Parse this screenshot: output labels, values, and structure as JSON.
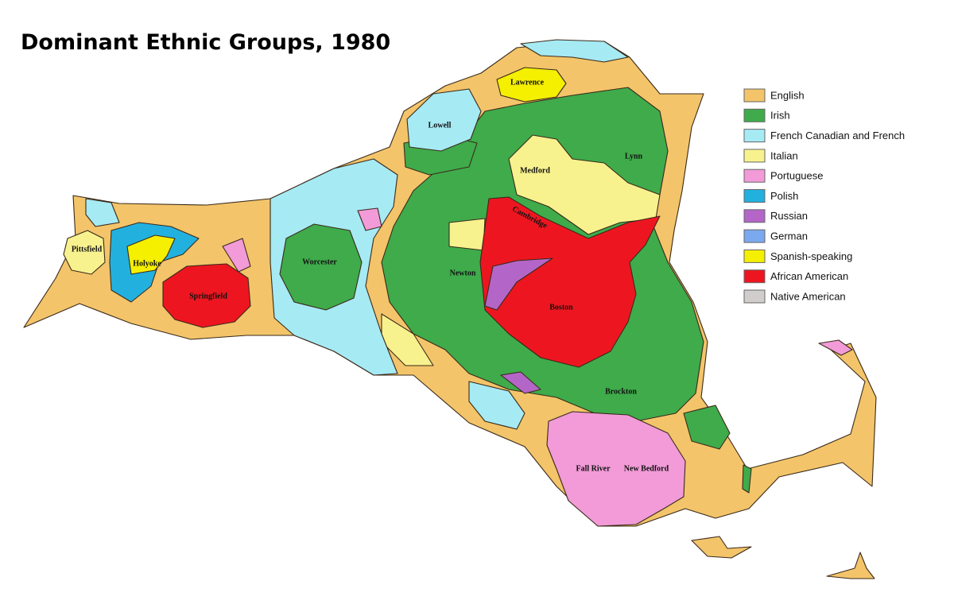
{
  "title": "Dominant Ethnic Groups, 1980",
  "legend": [
    {
      "label": "English",
      "color": "#f3c46a"
    },
    {
      "label": "Irish",
      "color": "#3fab4b"
    },
    {
      "label": "French Canadian and French",
      "color": "#a6eaf4"
    },
    {
      "label": "Italian",
      "color": "#f8f28e"
    },
    {
      "label": "Portuguese",
      "color": "#f29bd8"
    },
    {
      "label": "Polish",
      "color": "#22b1df"
    },
    {
      "label": "Russian",
      "color": "#b466c8"
    },
    {
      "label": "German",
      "color": "#7ba9ef"
    },
    {
      "label": "Spanish-speaking",
      "color": "#f5ef00"
    },
    {
      "label": "African American",
      "color": "#ed1620"
    },
    {
      "label": "Native American",
      "color": "#d1cdcc"
    }
  ],
  "places": [
    {
      "label": "Lawrence"
    },
    {
      "label": "Lowell"
    },
    {
      "label": "Lynn"
    },
    {
      "label": "Medford"
    },
    {
      "label": "Cambridge"
    },
    {
      "label": "Pittsfield"
    },
    {
      "label": "Holyoke"
    },
    {
      "label": "Worcester"
    },
    {
      "label": "Newton"
    },
    {
      "label": "Springfield"
    },
    {
      "label": "Boston"
    },
    {
      "label": "Brockton"
    },
    {
      "label": "Fall River"
    },
    {
      "label": "New Bedford"
    }
  ]
}
